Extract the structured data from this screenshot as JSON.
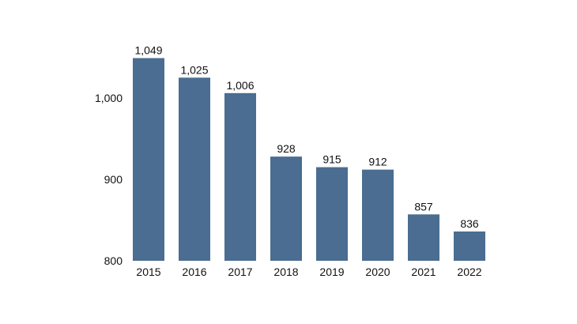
{
  "chart_data": {
    "type": "bar",
    "title": "",
    "xlabel": "",
    "ylabel": "",
    "categories": [
      "2015",
      "2016",
      "2017",
      "2018",
      "2019",
      "2020",
      "2021",
      "2022"
    ],
    "values": [
      1049,
      1025,
      1006,
      928,
      915,
      912,
      857,
      836
    ],
    "value_labels": [
      "1,049",
      "1,025",
      "1,006",
      "928",
      "915",
      "912",
      "857",
      "836"
    ],
    "ylim": [
      800,
      1060
    ],
    "yticks": [
      800,
      900,
      1000
    ],
    "ytick_labels": [
      "800",
      "900",
      "1,000"
    ],
    "grid": false,
    "legend": "none",
    "colors": {
      "bar": "#4a6d91",
      "text": "#111111"
    }
  }
}
